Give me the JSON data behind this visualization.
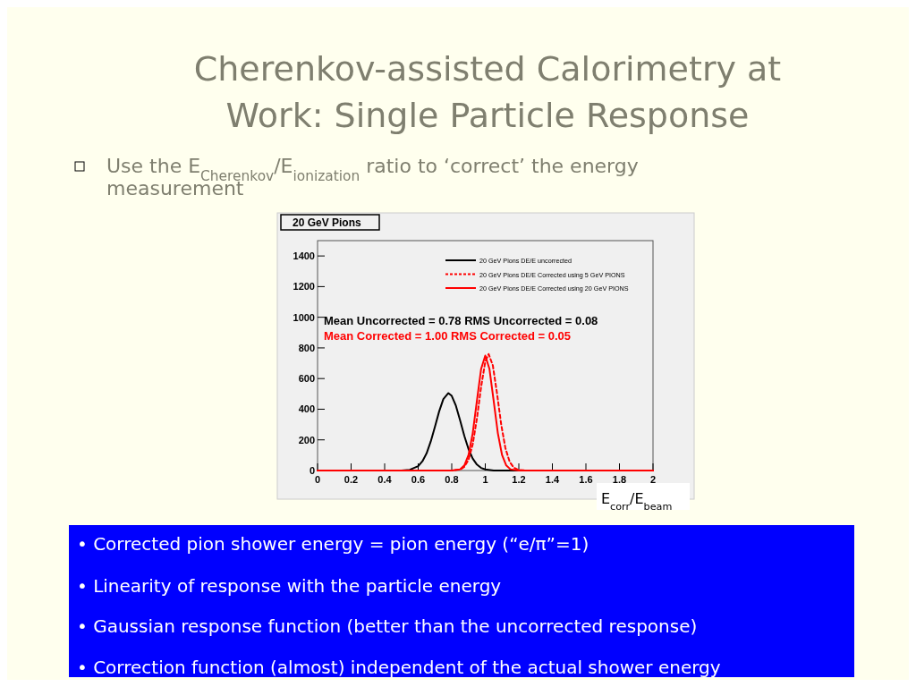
{
  "chart_data": {
    "type": "line",
    "title": "20  GeV Pions",
    "xlabel": "E$_{corr}$/E$_{beam}$",
    "xlim": [
      0,
      2
    ],
    "xticks": [
      0,
      0.2,
      0.4,
      0.6,
      0.8,
      1,
      1.2,
      1.4,
      1.6,
      1.8,
      2
    ],
    "ylim": [
      0,
      1500
    ],
    "yticks": [
      0,
      200,
      400,
      600,
      800,
      1000,
      1200,
      1400
    ],
    "grid": false,
    "legend": "top right",
    "marker": "none",
    "series": [
      {
        "name": "20 GeV Pions DE/E uncorrected",
        "color": "#000000",
        "line_style": "solid",
        "x": [
          0,
          0.5,
          0.55,
          0.6,
          0.625,
          0.65,
          0.675,
          0.7,
          0.725,
          0.75,
          0.78,
          0.8,
          0.825,
          0.85,
          0.875,
          0.9,
          0.925,
          0.95,
          0.975,
          1,
          1.05,
          2
        ],
        "values": [
          0,
          0,
          5,
          28,
          60,
          112,
          190,
          286,
          386,
          466,
          505,
          487,
          422,
          327,
          226,
          140,
          78,
          39,
          17,
          7,
          0,
          0
        ]
      },
      {
        "name": "20 GeV Pions DE/E Corrected using 5 GeV PIONS",
        "color": "#ff0000",
        "line_style": "dashed",
        "x": [
          0,
          0.8,
          0.85,
          0.875,
          0.9,
          0.925,
          0.95,
          0.975,
          1,
          1.02,
          1.045,
          1.07,
          1.095,
          1.12,
          1.145,
          1.17,
          1.2,
          1.25,
          2
        ],
        "values": [
          0,
          0,
          6,
          24,
          70,
          171,
          338,
          544,
          711,
          760,
          686,
          503,
          300,
          146,
          58,
          18,
          4,
          0,
          0
        ]
      },
      {
        "name": "20 GeV Pions DE/E Corrected using 20 GeV PIONS",
        "color": "#ff0000",
        "line_style": "solid",
        "x": [
          0,
          0.8,
          0.85,
          0.875,
          0.9,
          0.925,
          0.95,
          0.975,
          1,
          1.025,
          1.05,
          1.075,
          1.1,
          1.125,
          1.15,
          1.2,
          2
        ],
        "values": [
          0,
          0,
          8,
          33,
          101,
          243,
          455,
          662,
          750,
          662,
          455,
          243,
          101,
          33,
          8,
          0,
          0
        ]
      }
    ],
    "annotations": [
      "Cherenkov-assisted Calorimetry at\nWork: Single Particle Response",
      "Use the E$_{Cherenkov}$/E$_{ionization}$ ratio to ‘correct’ the energy\nmeasurement",
      "Mean Uncorrected =  0.78  RMS Uncorrected =  0.08",
      "Mean Corrected =  1.00  RMS Corrected =  0.05",
      "• Corrected pion shower energy = pion energy (“e/π”=1)",
      "• Linearity of response with the particle energy",
      "• Gaussian response function (better than the uncorrected response)",
      "• Correction function (almost) independent of the actual shower energy"
    ]
  }
}
